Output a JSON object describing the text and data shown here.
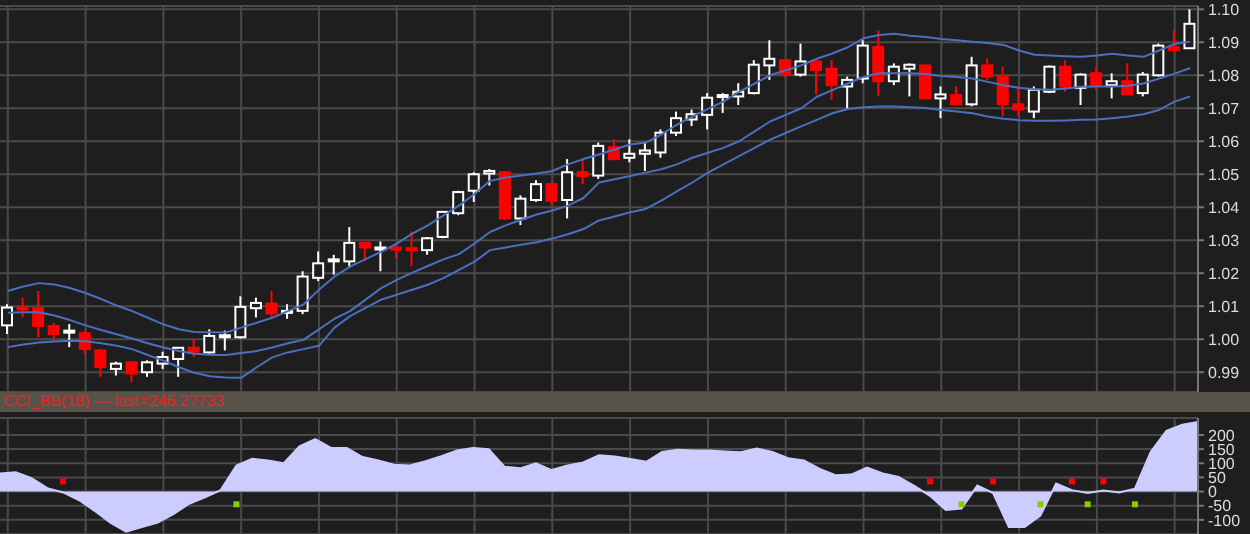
{
  "chart_data": [
    {
      "type": "candlestick",
      "categories": [
        null,
        null,
        null,
        null,
        null,
        null,
        null,
        null,
        null,
        null,
        null,
        null,
        null,
        null,
        null,
        null,
        null,
        null,
        null,
        null,
        null,
        null,
        null,
        null,
        null,
        null,
        null,
        null,
        null,
        null,
        null,
        null,
        null,
        null,
        null,
        null,
        null,
        null,
        null,
        null,
        null,
        null,
        null,
        null,
        null,
        null,
        null,
        null,
        null,
        null,
        null,
        null,
        null,
        null,
        null,
        null,
        null,
        null,
        null,
        null,
        null,
        null,
        null,
        null,
        null,
        null,
        null,
        null,
        null,
        null,
        null,
        null,
        null,
        null,
        null,
        null,
        null
      ],
      "ohlc": [
        [
          1.0042,
          1.0106,
          1.0016,
          1.0096
        ],
        [
          1.0096,
          1.0126,
          1.0066,
          1.009
        ],
        [
          1.0094,
          1.0146,
          1.0006,
          1.004
        ],
        [
          1.004,
          1.005,
          0.9996,
          1.0016
        ],
        [
          1.0022,
          1.0046,
          0.9976,
          1.0026
        ],
        [
          1.0018,
          1.0026,
          0.9956,
          0.997
        ],
        [
          0.9966,
          0.997,
          0.9886,
          0.9916
        ],
        [
          0.991,
          0.9932,
          0.989,
          0.9926
        ],
        [
          0.993,
          0.9932,
          0.987,
          0.9896
        ],
        [
          0.99,
          0.9936,
          0.9886,
          0.993
        ],
        [
          0.9926,
          0.9962,
          0.991,
          0.9946
        ],
        [
          0.994,
          0.9976,
          0.9886,
          0.9974
        ],
        [
          0.9974,
          1.0002,
          0.9946,
          0.9962
        ],
        [
          0.996,
          1.003,
          0.9956,
          1.001
        ],
        [
          1.001,
          1.0026,
          0.9966,
          1.0012
        ],
        [
          1.0006,
          1.013,
          1.0002,
          1.0098
        ],
        [
          1.0094,
          1.0126,
          1.0066,
          1.011
        ],
        [
          1.0108,
          1.0146,
          1.0066,
          1.0078
        ],
        [
          1.0082,
          1.0106,
          1.0062,
          1.0086
        ],
        [
          1.0086,
          1.0206,
          1.0076,
          1.019
        ],
        [
          1.0186,
          1.0266,
          1.0176,
          1.023
        ],
        [
          1.0236,
          1.0256,
          1.0196,
          1.0242
        ],
        [
          1.0236,
          1.034,
          1.0216,
          1.0292
        ],
        [
          1.0292,
          1.0292,
          1.0236,
          1.0278
        ],
        [
          1.0274,
          1.0296,
          1.0206,
          1.0278
        ],
        [
          1.0278,
          1.0282,
          1.0246,
          1.0272
        ],
        [
          1.0276,
          1.0326,
          1.0222,
          1.027
        ],
        [
          1.027,
          1.031,
          1.0256,
          1.0306
        ],
        [
          1.031,
          1.0386,
          1.0306,
          1.0386
        ],
        [
          1.0382,
          1.045,
          1.0376,
          1.0446
        ],
        [
          1.045,
          1.0506,
          1.0416,
          1.05
        ],
        [
          1.0502,
          1.0516,
          1.0466,
          1.051
        ],
        [
          1.0506,
          1.051,
          1.0362,
          1.0366
        ],
        [
          1.0366,
          1.0436,
          1.0346,
          1.0426
        ],
        [
          1.0422,
          1.0482,
          1.0416,
          1.047
        ],
        [
          1.047,
          1.0476,
          1.0406,
          1.042
        ],
        [
          1.0422,
          1.0546,
          1.0366,
          1.0506
        ],
        [
          1.0506,
          1.0546,
          1.047,
          1.0494
        ],
        [
          1.0496,
          1.0596,
          1.0486,
          1.0586
        ],
        [
          1.0582,
          1.0606,
          1.0542,
          1.0546
        ],
        [
          1.055,
          1.0606,
          1.0536,
          1.0562
        ],
        [
          1.0562,
          1.0596,
          1.051,
          1.0572
        ],
        [
          1.0566,
          1.0636,
          1.055,
          1.0626
        ],
        [
          1.0626,
          1.069,
          1.0616,
          1.067
        ],
        [
          1.0666,
          1.0696,
          1.0646,
          1.0682
        ],
        [
          1.068,
          1.0746,
          1.0636,
          1.0732
        ],
        [
          1.0734,
          1.0746,
          1.0686,
          1.074
        ],
        [
          1.0736,
          1.0776,
          1.071,
          1.075
        ],
        [
          1.0746,
          1.0846,
          1.0742,
          1.0832
        ],
        [
          1.083,
          1.0906,
          1.0786,
          1.085
        ],
        [
          1.0846,
          1.085,
          1.0796,
          1.0802
        ],
        [
          1.0802,
          1.0896,
          1.0796,
          1.0842
        ],
        [
          1.0842,
          1.0846,
          1.0742,
          1.0816
        ],
        [
          1.082,
          1.0846,
          1.0726,
          1.077
        ],
        [
          1.0766,
          1.0796,
          1.0696,
          1.0786
        ],
        [
          1.079,
          1.0906,
          1.0776,
          1.089
        ],
        [
          1.0886,
          1.0936,
          1.0736,
          1.0782
        ],
        [
          1.0782,
          1.0836,
          1.077,
          1.0826
        ],
        [
          1.082,
          1.0836,
          1.0736,
          1.0832
        ],
        [
          1.083,
          1.083,
          1.0726,
          1.073
        ],
        [
          1.073,
          1.0766,
          1.067,
          1.0742
        ],
        [
          1.074,
          1.0766,
          1.071,
          1.0712
        ],
        [
          1.0712,
          1.0856,
          1.0706,
          1.083
        ],
        [
          1.083,
          1.085,
          1.0786,
          1.0796
        ],
        [
          1.0796,
          1.0826,
          1.0676,
          1.0712
        ],
        [
          1.0712,
          1.0766,
          1.0676,
          1.0696
        ],
        [
          1.069,
          1.0766,
          1.067,
          1.0756
        ],
        [
          1.075,
          1.083,
          1.0746,
          1.0826
        ],
        [
          1.0826,
          1.0846,
          1.075,
          1.0766
        ],
        [
          1.0762,
          1.0806,
          1.071,
          1.0802
        ],
        [
          1.0806,
          1.0826,
          1.0756,
          1.077
        ],
        [
          1.077,
          1.0806,
          1.073,
          1.0782
        ],
        [
          1.0782,
          1.0836,
          1.074,
          1.0742
        ],
        [
          1.0746,
          1.081,
          1.0736,
          1.0802
        ],
        [
          1.08,
          1.0896,
          1.0796,
          1.089
        ],
        [
          1.0886,
          1.0936,
          1.0876,
          1.0876
        ],
        [
          1.0882,
          1.1,
          1.0882,
          1.0956
        ]
      ],
      "series": [
        {
          "type": "line",
          "color": "#4a6fc0",
          "values": [
            1.0146,
            1.016,
            1.017,
            1.0166,
            1.0155,
            1.014,
            1.0122,
            1.0102,
            1.0085,
            1.0065,
            1.0045,
            1.003,
            1.0022,
            1.0021,
            1.002,
            1.0035,
            1.005,
            1.0065,
            1.0085,
            1.0105,
            1.015,
            1.019,
            1.022,
            1.0243,
            1.0265,
            1.029,
            1.032,
            1.0345,
            1.0375,
            1.0405,
            1.044,
            1.048,
            1.049,
            1.0496,
            1.0502,
            1.051,
            1.053,
            1.0546,
            1.056,
            1.0575,
            1.059,
            1.0596,
            1.062,
            1.065,
            1.0675,
            1.0698,
            1.072,
            1.075,
            1.0775,
            1.08,
            1.0815,
            1.083,
            1.085,
            1.0866,
            1.0885,
            1.0912,
            1.0922,
            1.0926,
            1.092,
            1.0916,
            1.091,
            1.0906,
            1.0902,
            1.0898,
            1.0892,
            1.0875,
            1.0862,
            1.086,
            1.0858,
            1.0856,
            1.086,
            1.0865,
            1.086,
            1.0856,
            1.0875,
            1.0895,
            1.0902
          ]
        },
        {
          "type": "line",
          "color": "#4a6fc0",
          "values": [
            1.008,
            1.0082,
            1.0082,
            1.0072,
            1.0058,
            1.0042,
            1.0028,
            1.0015,
            1.0002,
            0.9988,
            0.9975,
            0.9964,
            0.9956,
            0.9953,
            0.9952,
            0.9958,
            0.9964,
            0.9975,
            0.9988,
            0.9998,
            1.003,
            1.0062,
            1.0085,
            1.012,
            1.0155,
            1.018,
            1.0202,
            1.0222,
            1.0242,
            1.0258,
            1.029,
            1.0325,
            1.0345,
            1.0362,
            1.0378,
            1.039,
            1.0405,
            1.0428,
            1.0475,
            1.0485,
            1.0495,
            1.0505,
            1.0515,
            1.053,
            1.055,
            1.0565,
            1.058,
            1.06,
            1.063,
            1.066,
            1.068,
            1.07,
            1.0735,
            1.0755,
            1.0775,
            1.0795,
            1.0806,
            1.0806,
            1.0806,
            1.0804,
            1.0798,
            1.0795,
            1.079,
            1.078,
            1.077,
            1.0762,
            1.0758,
            1.0756,
            1.076,
            1.0765,
            1.0766,
            1.0766,
            1.0768,
            1.0775,
            1.079,
            1.0805,
            1.0822
          ]
        },
        {
          "type": "line",
          "color": "#4a6fc0",
          "values": [
            0.9976,
            0.9984,
            0.999,
            0.9993,
            0.9995,
            0.9994,
            0.9988,
            0.998,
            0.997,
            0.9952,
            0.9935,
            0.9915,
            0.9898,
            0.9888,
            0.9884,
            0.9883,
            0.9915,
            0.9945,
            0.996,
            0.997,
            0.998,
            1.0035,
            1.007,
            1.0095,
            1.012,
            1.0135,
            1.015,
            1.0165,
            1.0185,
            1.021,
            1.0235,
            1.027,
            1.0278,
            1.0286,
            1.0294,
            1.0305,
            1.0318,
            1.0334,
            1.036,
            1.0372,
            1.0385,
            1.0395,
            1.042,
            1.0448,
            1.0475,
            1.0505,
            1.053,
            1.0555,
            1.058,
            1.0605,
            1.0625,
            1.0645,
            1.0665,
            1.0685,
            1.0698,
            1.0703,
            1.0705,
            1.0705,
            1.0703,
            1.0701,
            1.0695,
            1.069,
            1.0685,
            1.0675,
            1.0668,
            1.0664,
            1.0662,
            1.0662,
            1.0663,
            1.0665,
            1.0666,
            1.067,
            1.0675,
            1.0682,
            1.0695,
            1.072,
            1.0736
          ]
        }
      ],
      "ylim": [
        0.984,
        1.101
      ],
      "yticks": [
        0.99,
        {
          "value": 1,
          "label": "1.00"
        },
        1.01,
        1.02,
        1.03,
        1.04,
        1.05,
        1.06,
        1.07,
        1.08,
        1.09,
        {
          "value": 1.1,
          "label": "1.10"
        }
      ],
      "grid": true,
      "tick_labels": "y"
    },
    {
      "type": "area",
      "title": "CCI_BB(18) — last=246.27733",
      "categories": [
        null,
        null,
        null,
        null,
        null,
        null,
        null,
        null,
        null,
        null,
        null,
        null,
        null,
        null,
        null,
        null,
        null,
        null,
        null,
        null,
        null,
        null,
        null,
        null,
        null,
        null,
        null,
        null,
        null,
        null,
        null,
        null,
        null,
        null,
        null,
        null,
        null,
        null,
        null,
        null,
        null,
        null,
        null,
        null,
        null,
        null,
        null,
        null,
        null,
        null,
        null,
        null,
        null,
        null,
        null,
        null,
        null,
        null,
        null,
        null,
        null,
        null,
        null,
        null,
        null,
        null,
        null,
        null,
        null,
        null,
        null,
        null,
        null,
        null,
        null,
        null,
        null
      ],
      "series": [
        {
          "type": "area",
          "color": "#ccccff",
          "values": [
            64,
            68,
            47,
            12,
            -3,
            -30,
            -68,
            -110,
            -142,
            -125,
            -110,
            -80,
            -43,
            -20,
            5,
            92,
            116,
            110,
            100,
            160,
            185,
            154,
            154,
            122,
            110,
            95,
            92,
            107,
            125,
            145,
            154,
            150,
            88,
            82,
            100,
            76,
            92,
            103,
            128,
            124,
            115,
            105,
            140,
            148,
            145,
            145,
            142,
            139,
            152,
            140,
            118,
            110,
            80,
            58,
            60,
            85,
            64,
            52,
            20,
            -15,
            -65,
            -60,
            21,
            -5,
            -125,
            -125,
            -85,
            28,
            5,
            -5,
            4,
            -3,
            10,
            140,
            215,
            236,
            246
          ]
        },
        {
          "type": "scatter",
          "color": "#ff0000",
          "marker": "square",
          "values": [
            null,
            null,
            null,
            null,
            36,
            null,
            null,
            null,
            null,
            null,
            null,
            null,
            null,
            null,
            null,
            null,
            null,
            null,
            null,
            null,
            null,
            null,
            null,
            null,
            null,
            null,
            null,
            null,
            null,
            null,
            null,
            null,
            null,
            null,
            null,
            null,
            null,
            null,
            null,
            null,
            null,
            null,
            null,
            null,
            null,
            null,
            null,
            null,
            null,
            null,
            null,
            null,
            null,
            null,
            null,
            null,
            null,
            null,
            null,
            36,
            null,
            null,
            null,
            36,
            null,
            null,
            null,
            null,
            36,
            null,
            36,
            null,
            null,
            null,
            null,
            null,
            null
          ]
        },
        {
          "type": "scatter",
          "color": "#88cc00",
          "marker": "square",
          "values": [
            null,
            null,
            null,
            null,
            null,
            null,
            null,
            null,
            null,
            null,
            null,
            null,
            null,
            null,
            null,
            -45,
            null,
            null,
            null,
            null,
            null,
            null,
            null,
            null,
            null,
            null,
            null,
            null,
            null,
            null,
            null,
            null,
            null,
            null,
            null,
            null,
            null,
            null,
            null,
            null,
            null,
            null,
            null,
            null,
            null,
            null,
            null,
            null,
            null,
            null,
            null,
            null,
            null,
            null,
            null,
            null,
            null,
            null,
            null,
            null,
            null,
            -45,
            null,
            null,
            null,
            null,
            -45,
            null,
            null,
            -45,
            null,
            null,
            -45,
            null,
            null,
            null,
            null
          ]
        }
      ],
      "ylim": [
        -150,
        260
      ],
      "yticks": [
        -100,
        -50,
        0,
        50,
        100,
        150,
        200
      ],
      "grid": true,
      "tick_labels": "y"
    }
  ]
}
